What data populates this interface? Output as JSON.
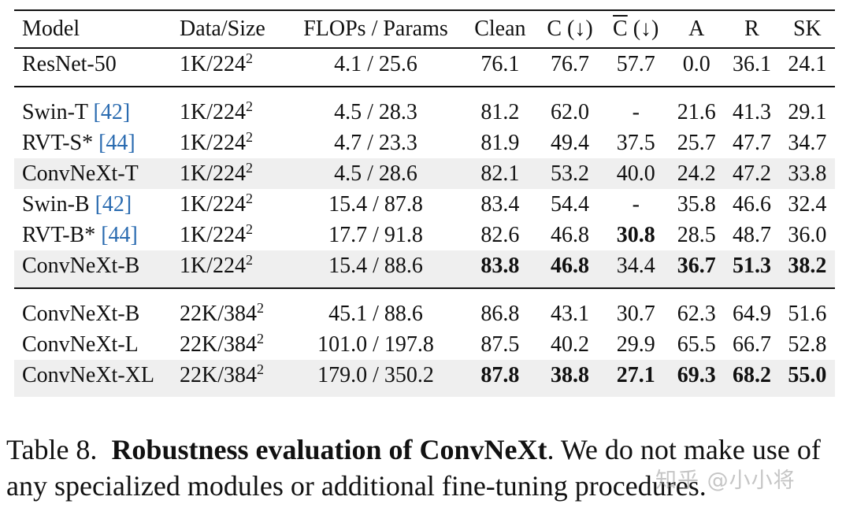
{
  "table": {
    "headers": {
      "model": "Model",
      "data_size": "Data/Size",
      "flops_params": "FLOPs / Params",
      "clean": "Clean",
      "c": "C (↓)",
      "cbar_letter": "C",
      "cbar_rest": " (↓)",
      "a": "A",
      "r": "R",
      "sk": "SK"
    },
    "groups": [
      {
        "rows": [
          {
            "name": "ResNet-50",
            "cite": "",
            "data": "1K/224",
            "sup": "2",
            "flops": "4.1 / 25.6",
            "clean": "76.1",
            "c": "76.7",
            "cbar": "57.7",
            "a": "0.0",
            "r": "36.1",
            "sk": "24.1"
          }
        ]
      },
      {
        "rows": [
          {
            "name": "Swin-T ",
            "cite": "[42]",
            "data": "1K/224",
            "sup": "2",
            "flops": "4.5 / 28.3",
            "clean": "81.2",
            "c": "62.0",
            "cbar": "-",
            "a": "21.6",
            "r": "41.3",
            "sk": "29.1"
          },
          {
            "name": "RVT-S* ",
            "cite": "[44]",
            "data": "1K/224",
            "sup": "2",
            "flops": "4.7 / 23.3",
            "clean": "81.9",
            "c": "49.4",
            "cbar": "37.5",
            "a": "25.7",
            "r": "47.7",
            "sk": "34.7"
          },
          {
            "name": "ConvNeXt-T",
            "cite": "",
            "data": "1K/224",
            "sup": "2",
            "flops": "4.5 / 28.6",
            "clean": "82.1",
            "c": "53.2",
            "cbar": "40.0",
            "a": "24.2",
            "r": "47.2",
            "sk": "33.8"
          },
          {
            "name": "Swin-B ",
            "cite": "[42]",
            "data": "1K/224",
            "sup": "2",
            "flops": "15.4 / 87.8",
            "clean": "83.4",
            "c": "54.4",
            "cbar": "-",
            "a": "35.8",
            "r": "46.6",
            "sk": "32.4"
          },
          {
            "name": "RVT-B* ",
            "cite": "[44]",
            "data": "1K/224",
            "sup": "2",
            "flops": "17.7 / 91.8",
            "clean": "82.6",
            "c": "46.8",
            "cbar": "30.8",
            "a": "28.5",
            "r": "48.7",
            "sk": "36.0"
          },
          {
            "name": "ConvNeXt-B",
            "cite": "",
            "data": "1K/224",
            "sup": "2",
            "flops": "15.4 / 88.6",
            "clean": "83.8",
            "c": "46.8",
            "cbar": "34.4",
            "a": "36.7",
            "r": "51.3",
            "sk": "38.2"
          }
        ]
      },
      {
        "rows": [
          {
            "name": "ConvNeXt-B",
            "cite": "",
            "data": "22K/384",
            "sup": "2",
            "flops": "45.1 / 88.6",
            "clean": "86.8",
            "c": "43.1",
            "cbar": "30.7",
            "a": "62.3",
            "r": "64.9",
            "sk": "51.6"
          },
          {
            "name": "ConvNeXt-L",
            "cite": "",
            "data": "22K/384",
            "sup": "2",
            "flops": "101.0 / 197.8",
            "clean": "87.5",
            "c": "40.2",
            "cbar": "29.9",
            "a": "65.5",
            "r": "66.7",
            "sk": "52.8"
          },
          {
            "name": "ConvNeXt-XL",
            "cite": "",
            "data": "22K/384",
            "sup": "2",
            "flops": "179.0 / 350.2",
            "clean": "87.8",
            "c": "38.8",
            "cbar": "27.1",
            "a": "69.3",
            "r": "68.2",
            "sk": "55.0"
          }
        ]
      }
    ]
  },
  "caption": {
    "label": "Table 8.",
    "title": "Robustness evaluation of ConvNeXt",
    "text": ". We do not make use of any specialized modules or additional fine-tuning procedures."
  },
  "watermark": "知乎 @小小将"
}
